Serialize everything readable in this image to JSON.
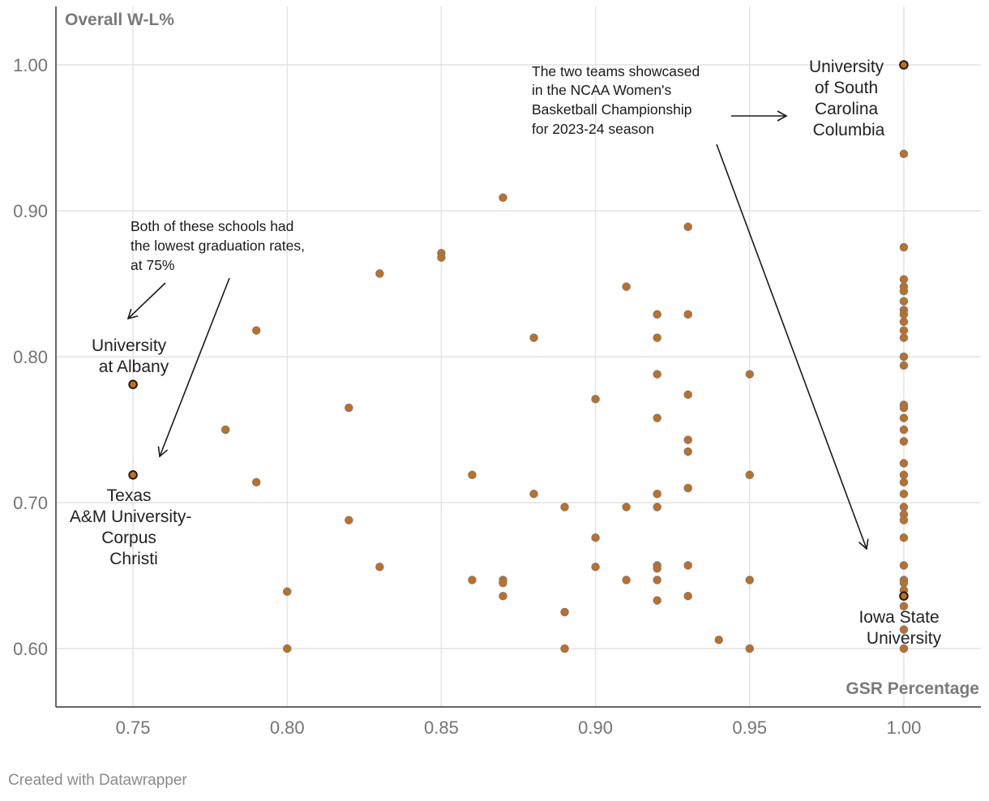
{
  "chart_data": {
    "type": "scatter",
    "title": "",
    "xlabel": "GSR Percentage",
    "ylabel": "Overall W-L%",
    "xlim": [
      0.725,
      1.025
    ],
    "ylim": [
      0.56,
      1.04
    ],
    "xticks": [
      0.75,
      0.8,
      0.85,
      0.9,
      0.95,
      1.0
    ],
    "xtick_labels": [
      "0.75",
      "0.80",
      "0.85",
      "0.90",
      "0.95",
      "1.00"
    ],
    "yticks": [
      0.6,
      0.7,
      0.8,
      0.9,
      1.0
    ],
    "ytick_labels": [
      "0.60",
      "0.70",
      "0.80",
      "0.90",
      "1.00"
    ],
    "grid": true,
    "point_color": "#c96d14",
    "point_stroke": "#7c7c7c",
    "highlight_stroke": "#1e1e1e",
    "points": [
      [
        0.78,
        0.75
      ],
      [
        0.79,
        0.818
      ],
      [
        0.79,
        0.714
      ],
      [
        0.8,
        0.639
      ],
      [
        0.8,
        0.6
      ],
      [
        0.82,
        0.765
      ],
      [
        0.82,
        0.688
      ],
      [
        0.83,
        0.857
      ],
      [
        0.83,
        0.656
      ],
      [
        0.85,
        0.871
      ],
      [
        0.85,
        0.868
      ],
      [
        0.86,
        0.719
      ],
      [
        0.86,
        0.647
      ],
      [
        0.87,
        0.909
      ],
      [
        0.87,
        0.647
      ],
      [
        0.87,
        0.645
      ],
      [
        0.87,
        0.636
      ],
      [
        0.88,
        0.813
      ],
      [
        0.88,
        0.706
      ],
      [
        0.89,
        0.697
      ],
      [
        0.89,
        0.625
      ],
      [
        0.89,
        0.6
      ],
      [
        0.9,
        0.771
      ],
      [
        0.9,
        0.676
      ],
      [
        0.9,
        0.656
      ],
      [
        0.91,
        0.848
      ],
      [
        0.91,
        0.697
      ],
      [
        0.91,
        0.647
      ],
      [
        0.92,
        0.829
      ],
      [
        0.92,
        0.813
      ],
      [
        0.92,
        0.788
      ],
      [
        0.92,
        0.758
      ],
      [
        0.92,
        0.706
      ],
      [
        0.92,
        0.697
      ],
      [
        0.92,
        0.657
      ],
      [
        0.92,
        0.655
      ],
      [
        0.92,
        0.647
      ],
      [
        0.92,
        0.633
      ],
      [
        0.93,
        0.889
      ],
      [
        0.93,
        0.829
      ],
      [
        0.93,
        0.774
      ],
      [
        0.93,
        0.743
      ],
      [
        0.93,
        0.735
      ],
      [
        0.93,
        0.71
      ],
      [
        0.93,
        0.657
      ],
      [
        0.93,
        0.636
      ],
      [
        0.94,
        0.606
      ],
      [
        0.95,
        0.788
      ],
      [
        0.95,
        0.719
      ],
      [
        0.95,
        0.647
      ],
      [
        0.95,
        0.6
      ],
      [
        1.0,
        0.939
      ],
      [
        1.0,
        0.875
      ],
      [
        1.0,
        0.853
      ],
      [
        1.0,
        0.848
      ],
      [
        1.0,
        0.845
      ],
      [
        1.0,
        0.838
      ],
      [
        1.0,
        0.832
      ],
      [
        1.0,
        0.829
      ],
      [
        1.0,
        0.824
      ],
      [
        1.0,
        0.818
      ],
      [
        1.0,
        0.813
      ],
      [
        1.0,
        0.8
      ],
      [
        1.0,
        0.794
      ],
      [
        1.0,
        0.767
      ],
      [
        1.0,
        0.765
      ],
      [
        1.0,
        0.758
      ],
      [
        1.0,
        0.75
      ],
      [
        1.0,
        0.742
      ],
      [
        1.0,
        0.727
      ],
      [
        1.0,
        0.719
      ],
      [
        1.0,
        0.714
      ],
      [
        1.0,
        0.706
      ],
      [
        1.0,
        0.697
      ],
      [
        1.0,
        0.692
      ],
      [
        1.0,
        0.688
      ],
      [
        1.0,
        0.676
      ],
      [
        1.0,
        0.657
      ],
      [
        1.0,
        0.647
      ],
      [
        1.0,
        0.645
      ],
      [
        1.0,
        0.64
      ],
      [
        1.0,
        0.629
      ],
      [
        1.0,
        0.613
      ],
      [
        1.0,
        0.6
      ]
    ],
    "highlighted": [
      {
        "name": "University of South Carolina Columbia",
        "x": 1.0,
        "y": 1.0,
        "label_lines": [
          "University",
          "of South",
          "Carolina",
          "Columbia"
        ]
      },
      {
        "name": "University at Albany",
        "x": 0.75,
        "y": 0.781,
        "label_lines": [
          "University",
          "at Albany"
        ]
      },
      {
        "name": "Texas A&M University-Corpus Christi",
        "x": 0.75,
        "y": 0.719,
        "label_lines": [
          "Texas",
          "A&M University-",
          "Corpus",
          "Christi"
        ]
      },
      {
        "name": "Iowa State University",
        "x": 1.0,
        "y": 0.636,
        "label_lines": [
          "Iowa State",
          "University"
        ]
      }
    ],
    "annotations": [
      {
        "id": "championship",
        "lines": [
          "The two teams showcased",
          "in the NCAA Women's",
          "Basketball Championship",
          "for 2023-24 season"
        ]
      },
      {
        "id": "lowest-grad",
        "lines": [
          "Both of these schools had",
          "the lowest graduation rates,",
          "at 75%"
        ]
      }
    ]
  },
  "footer": {
    "credit": "Created with Datawrapper"
  }
}
